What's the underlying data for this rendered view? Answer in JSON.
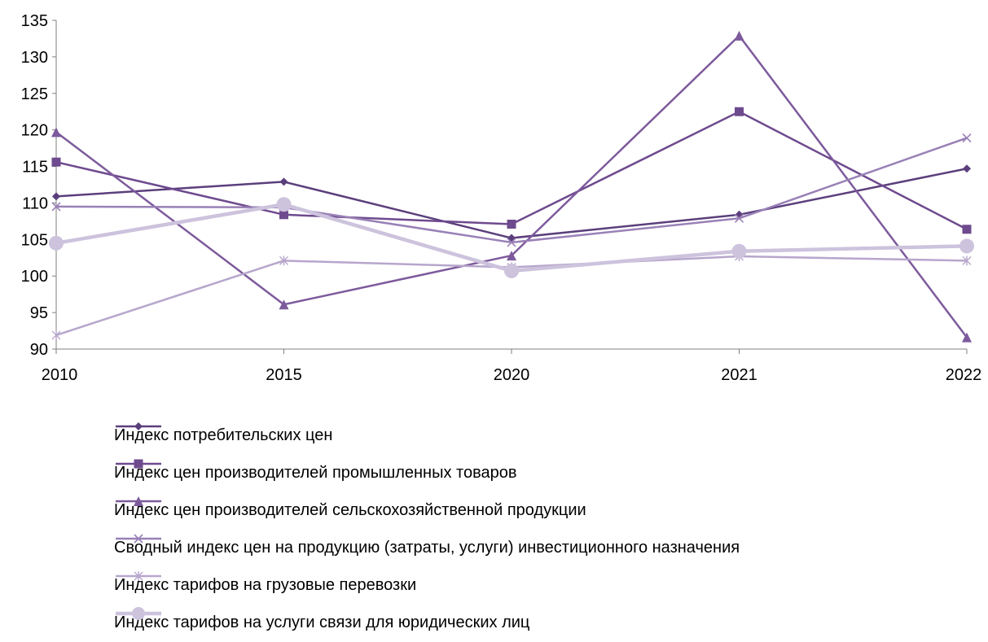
{
  "chart_data": {
    "type": "line",
    "categories": [
      "2010",
      "2015",
      "2020",
      "2021",
      "2022"
    ],
    "ylim": [
      90,
      135
    ],
    "yticks": [
      90,
      95,
      100,
      105,
      110,
      115,
      120,
      125,
      130,
      135
    ],
    "grid": false,
    "legend_position": "bottom",
    "series": [
      {
        "name": "Индекс потребительских цен",
        "values": [
          110.9,
          112.9,
          105.2,
          108.4,
          114.7
        ],
        "color": "#5b3f7c",
        "marker": "diamond",
        "marker_icon": "diamond-icon"
      },
      {
        "name": "Индекс цен производителей промышленных товаров",
        "values": [
          115.6,
          108.4,
          107.1,
          122.5,
          106.4
        ],
        "color": "#6e4a8e",
        "marker": "square",
        "marker_icon": "square-icon"
      },
      {
        "name": "Индекс цен производителей сельскохозяйственной продукции",
        "values": [
          119.7,
          96.1,
          102.8,
          132.9,
          91.6
        ],
        "color": "#7d5a9c",
        "marker": "triangle",
        "marker_icon": "triangle-icon"
      },
      {
        "name": "Сводный индекс цен на продукцию (затраты, услуги) инвестиционного назначения",
        "values": [
          109.5,
          109.4,
          104.6,
          107.9,
          118.9
        ],
        "color": "#9980b7",
        "marker": "x",
        "marker_icon": "cross-icon"
      },
      {
        "name": "Индекс тарифов на грузовые перевозки",
        "values": [
          91.9,
          102.1,
          101.2,
          102.7,
          102.1
        ],
        "color": "#b7a6cc",
        "marker": "star",
        "marker_icon": "asterisk-icon"
      },
      {
        "name": "Индекс тарифов на услуги связи для юридических лиц",
        "values": [
          104.5,
          109.8,
          100.7,
          103.4,
          104.1
        ],
        "color": "#cdc3dd",
        "marker": "circle",
        "marker_icon": "circle-icon"
      }
    ]
  }
}
